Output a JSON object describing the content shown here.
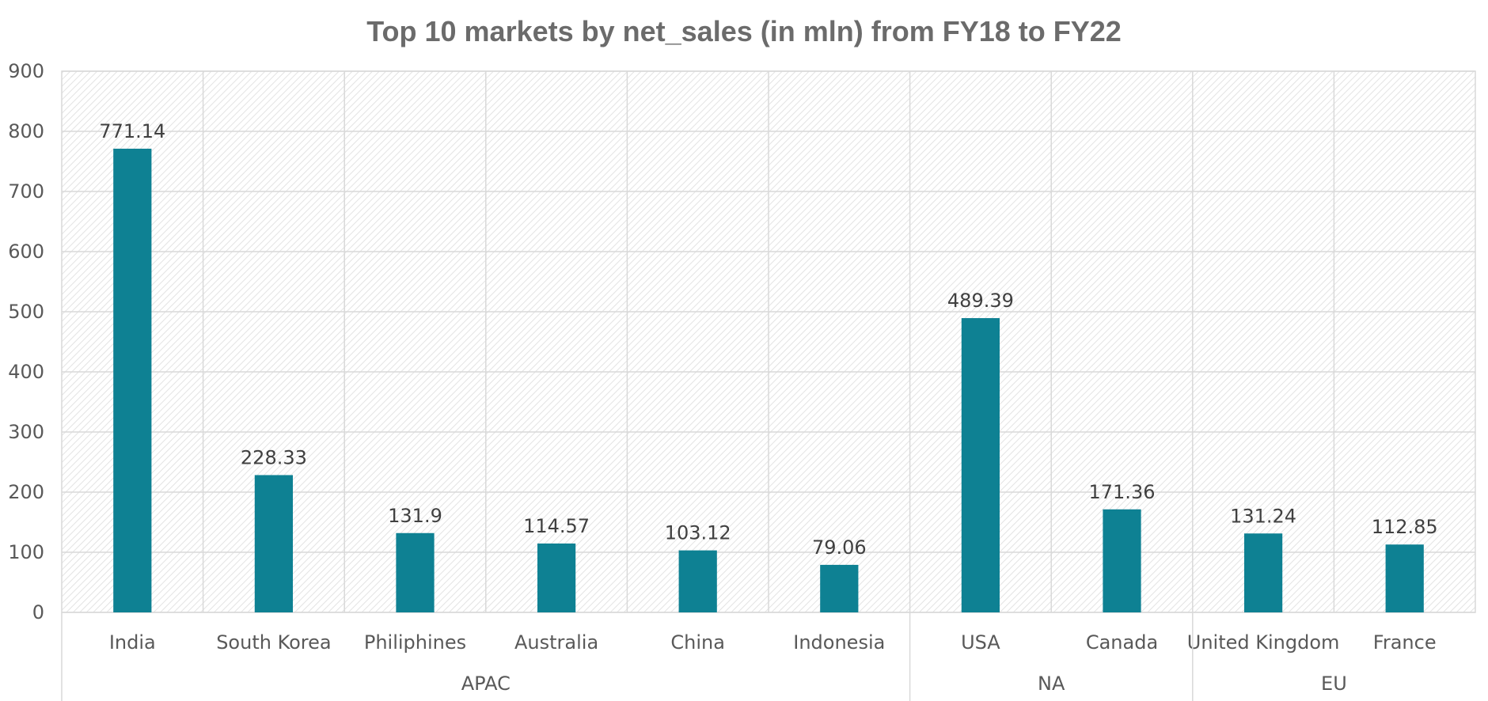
{
  "chart_data": {
    "type": "bar",
    "title": "Top 10 markets by net_sales (in mln) from FY18 to FY22",
    "xlabel": "",
    "ylabel": "",
    "ylim": [
      0,
      900
    ],
    "yticks": [
      0,
      100,
      200,
      300,
      400,
      500,
      600,
      700,
      800,
      900
    ],
    "categories": [
      "India",
      "South Korea",
      "Philiphines",
      "Australia",
      "China",
      "Indonesia",
      "USA",
      "Canada",
      "United Kingdom",
      "France"
    ],
    "values": [
      771.14,
      228.33,
      131.9,
      114.57,
      103.12,
      79.06,
      489.39,
      171.36,
      131.24,
      112.85
    ],
    "data_labels": [
      "771.14",
      "228.33",
      "131.9",
      "114.57",
      "103.12",
      "79.06",
      "489.39",
      "171.36",
      "131.24",
      "112.85"
    ],
    "groups": [
      {
        "name": "APAC",
        "count": 6
      },
      {
        "name": "NA",
        "count": 2
      },
      {
        "name": "EU",
        "count": 2
      }
    ],
    "grid": true,
    "legend": "none",
    "colors": {
      "bar": "#0e8193",
      "grid": "#d9d9d9",
      "title": "#6b6b6b",
      "text": "#595959"
    }
  }
}
